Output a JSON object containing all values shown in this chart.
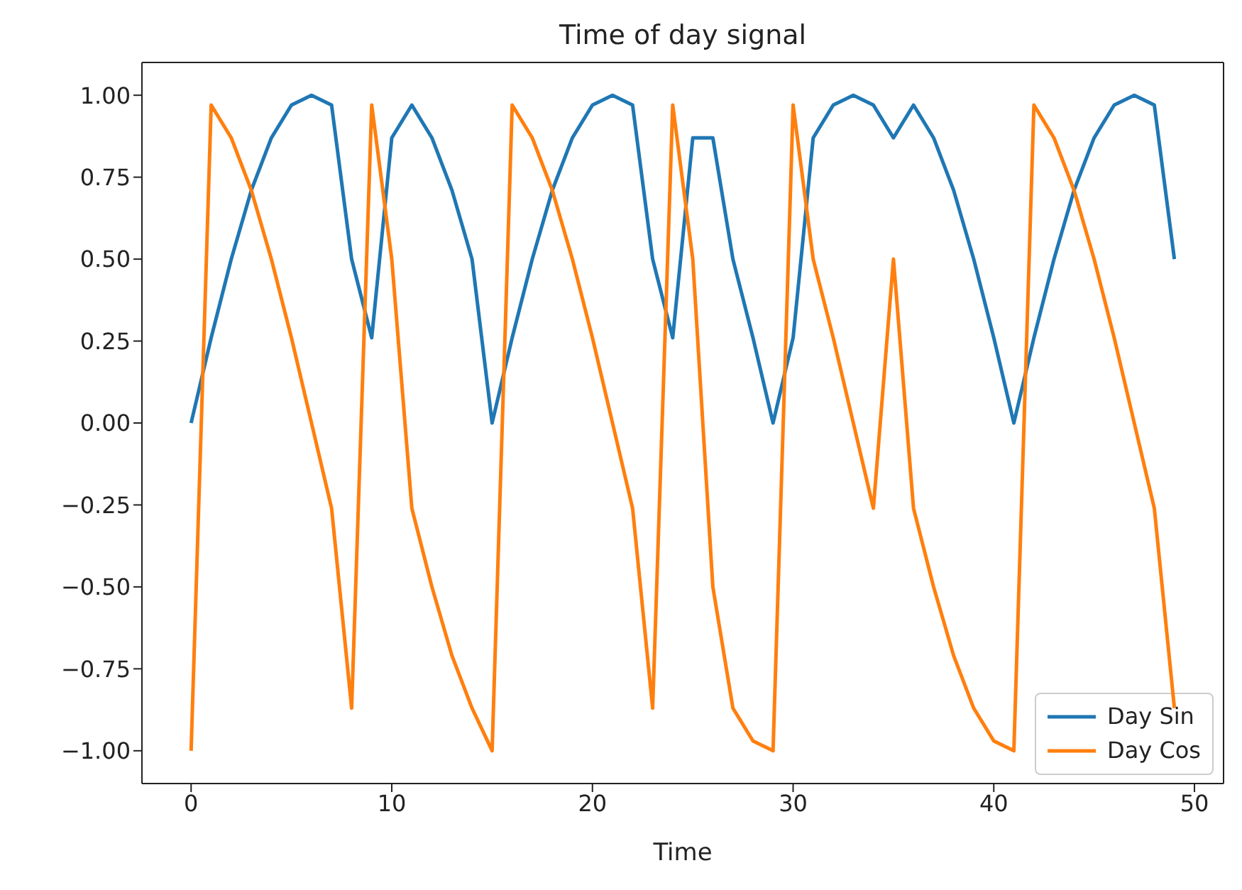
{
  "chart_data": {
    "type": "line",
    "title": "Time of day signal",
    "xlabel": "Time",
    "x": [
      0,
      1,
      2,
      3,
      4,
      5,
      6,
      7,
      8,
      9,
      10,
      11,
      12,
      13,
      14,
      15,
      16,
      17,
      18,
      19,
      20,
      21,
      22,
      23,
      24,
      25,
      26,
      27,
      28,
      29,
      30,
      31,
      32,
      33,
      34,
      35,
      36,
      37,
      38,
      39,
      40,
      41,
      42,
      43,
      44,
      45,
      46,
      47,
      48,
      49
    ],
    "series": [
      {
        "name": "Day Sin",
        "color": "#1f77b4",
        "values": [
          0,
          0.26,
          0.5,
          0.71,
          0.87,
          0.97,
          1.0,
          0.97,
          0.5,
          0.26,
          0.87,
          0.97,
          0.87,
          0.71,
          0.5,
          0,
          0.26,
          0.5,
          0.71,
          0.87,
          0.97,
          1.0,
          0.97,
          0.5,
          0.26,
          0.87,
          0.87,
          0.5,
          0.26,
          0,
          0.26,
          0.87,
          0.97,
          1.0,
          0.97,
          0.87,
          0.97,
          0.87,
          0.71,
          0.5,
          0.26,
          0,
          0.26,
          0.5,
          0.71,
          0.87,
          0.97,
          1.0,
          0.97,
          0.5
        ]
      },
      {
        "name": "Day Cos",
        "color": "#ff7f0e",
        "values": [
          -1.0,
          0.97,
          0.87,
          0.71,
          0.5,
          0.26,
          0,
          -0.26,
          -0.87,
          0.97,
          0.5,
          -0.26,
          -0.5,
          -0.71,
          -0.87,
          -1.0,
          0.97,
          0.87,
          0.71,
          0.5,
          0.26,
          0,
          -0.26,
          -0.87,
          0.97,
          0.5,
          -0.5,
          -0.87,
          -0.97,
          -1.0,
          0.97,
          0.5,
          0.26,
          0,
          -0.26,
          0.5,
          -0.26,
          -0.5,
          -0.71,
          -0.87,
          -0.97,
          -1.0,
          0.97,
          0.87,
          0.71,
          0.5,
          0.26,
          0,
          -0.26,
          -0.87
        ]
      }
    ],
    "xlim": [
      -2.45,
      51.45
    ],
    "xticks": [
      0,
      10,
      20,
      30,
      40,
      50
    ],
    "ylim": [
      -1.1,
      1.1
    ],
    "yticks": [
      {
        "value": -1,
        "label": "−1.00"
      },
      {
        "value": -0.75,
        "label": "−0.75"
      },
      {
        "value": -0.5,
        "label": "−0.50"
      },
      {
        "value": -0.25,
        "label": "−0.25"
      },
      {
        "value": 0,
        "label": "0.00"
      },
      {
        "value": 0.25,
        "label": "0.25"
      },
      {
        "value": 0.5,
        "label": "0.50"
      },
      {
        "value": 0.75,
        "label": "0.75"
      },
      {
        "value": 1,
        "label": "1.00"
      }
    ],
    "grid": false,
    "legend": "bottom right",
    "marker": "none",
    "line_style": "solid"
  }
}
